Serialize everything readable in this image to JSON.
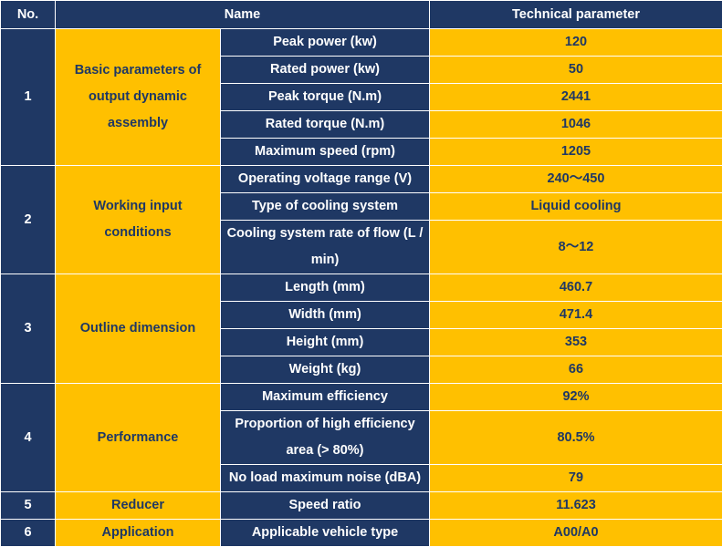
{
  "headers": {
    "no": "No.",
    "name": "Name",
    "param": "Technical parameter"
  },
  "groups": [
    {
      "no": "1",
      "title": "Basic parameters of output dynamic assembly",
      "rows": [
        {
          "name": "Peak power (kw)",
          "value": "120"
        },
        {
          "name": "Rated power (kw)",
          "value": "50"
        },
        {
          "name": "Peak torque (N.m)",
          "value": "2441"
        },
        {
          "name": "Rated torque (N.m)",
          "value": "1046"
        },
        {
          "name": "Maximum speed (rpm)",
          "value": "1205"
        }
      ]
    },
    {
      "no": "2",
      "title": "Working input conditions",
      "rows": [
        {
          "name": "Operating voltage range (V)",
          "value": "240～450"
        },
        {
          "name": "Type of cooling system",
          "value": "Liquid cooling"
        },
        {
          "name": "Cooling system rate of flow (L / min)",
          "value": "8～12"
        }
      ]
    },
    {
      "no": "3",
      "title": "Outline dimension",
      "rows": [
        {
          "name": "Length (mm)",
          "value": "460.7"
        },
        {
          "name": "Width (mm)",
          "value": "471.4"
        },
        {
          "name": "Height (mm)",
          "value": "353"
        },
        {
          "name": "Weight (kg)",
          "value": "66"
        }
      ]
    },
    {
      "no": "4",
      "title": "Performance",
      "rows": [
        {
          "name": "Maximum efficiency",
          "value": "92%"
        },
        {
          "name": "Proportion of high efficiency area (> 80%)",
          "value": "80.5%"
        },
        {
          "name": "No load maximum noise (dBA)",
          "value": "79"
        }
      ]
    },
    {
      "no": "5",
      "title": "Reducer",
      "rows": [
        {
          "name": "Speed ratio",
          "value": "11.623"
        }
      ]
    },
    {
      "no": "6",
      "title": "Application",
      "rows": [
        {
          "name": "Applicable vehicle type",
          "value": "A00/A0"
        }
      ]
    }
  ]
}
